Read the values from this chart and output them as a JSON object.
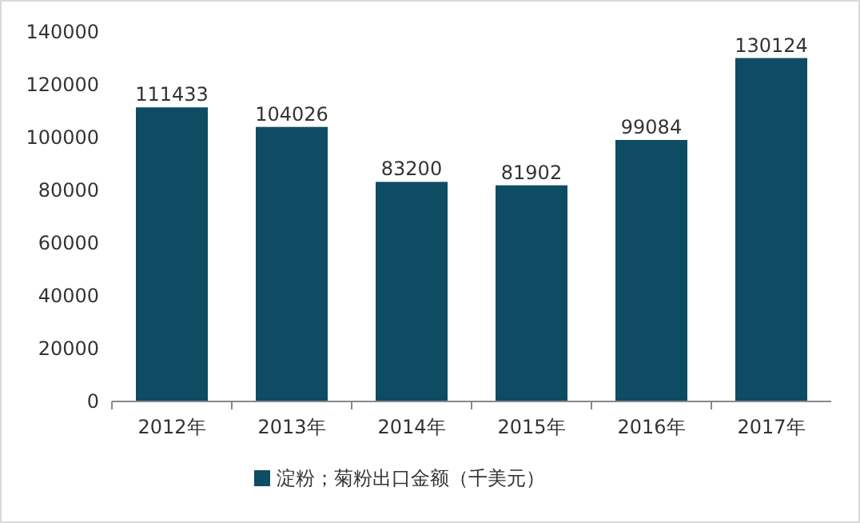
{
  "chart_data": {
    "type": "bar",
    "categories": [
      "2012年",
      "2013年",
      "2014年",
      "2015年",
      "2016年",
      "2017年"
    ],
    "series": [
      {
        "name": "淀粉；菊粉出口金额（千美元）",
        "color": "#0e4c64",
        "values": [
          111433,
          104026,
          83200,
          81902,
          99084,
          130124
        ]
      }
    ],
    "ylim": [
      0,
      140000
    ],
    "yticks": [
      0,
      20000,
      40000,
      60000,
      80000,
      100000,
      120000,
      140000
    ],
    "grid": false,
    "legend": "bottom",
    "data_labels": true
  }
}
